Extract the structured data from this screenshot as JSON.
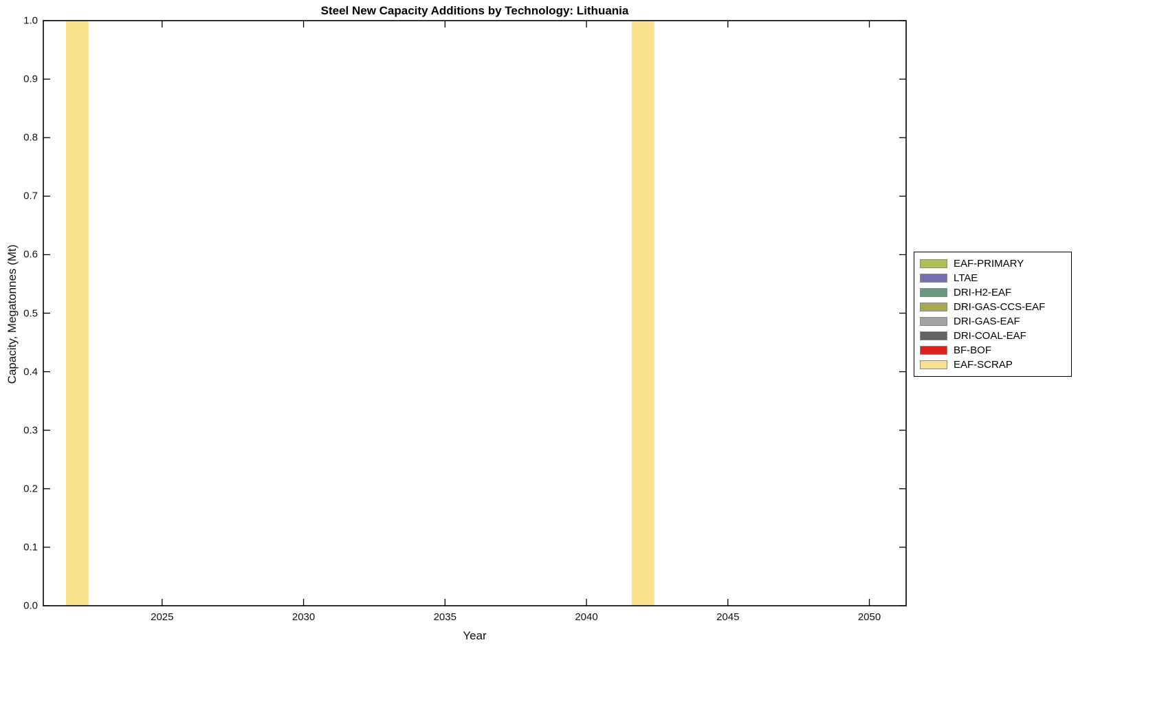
{
  "chart_data": {
    "type": "bar",
    "stacked": true,
    "title": "Steel New Capacity Additions by Technology: Lithuania",
    "xlabel": "Year",
    "ylabel": "Capacity, Megatonnes (Mt)",
    "xlim": [
      2020.8,
      2051.3
    ],
    "ylim": [
      0.0,
      1.0
    ],
    "xticks": [
      2025,
      2030,
      2035,
      2040,
      2045,
      2050
    ],
    "yticks": [
      0.0,
      0.1,
      0.2,
      0.3,
      0.4,
      0.5,
      0.6,
      0.7,
      0.8,
      0.9,
      1.0
    ],
    "grid": false,
    "legend_position": "right-outside",
    "bar_width_years": 0.8,
    "series": [
      {
        "name": "EAF-PRIMARY",
        "color": "#aec05e",
        "points": []
      },
      {
        "name": "LTAE",
        "color": "#7570b3",
        "points": []
      },
      {
        "name": "DRI-H2-EAF",
        "color": "#699a80",
        "points": []
      },
      {
        "name": "DRI-GAS-CCS-EAF",
        "color": "#a8a84f",
        "points": []
      },
      {
        "name": "DRI-GAS-EAF",
        "color": "#a2a2a2",
        "points": []
      },
      {
        "name": "DRI-COAL-EAF",
        "color": "#636363",
        "points": []
      },
      {
        "name": "BF-BOF",
        "color": "#da2020",
        "points": []
      },
      {
        "name": "EAF-SCRAP",
        "color": "#fbe28d",
        "points": [
          {
            "x": 2022,
            "value": 1.0
          },
          {
            "x": 2042,
            "value": 1.0
          }
        ]
      }
    ]
  },
  "style": {
    "axis_color": "#000000",
    "background": "#ffffff"
  }
}
